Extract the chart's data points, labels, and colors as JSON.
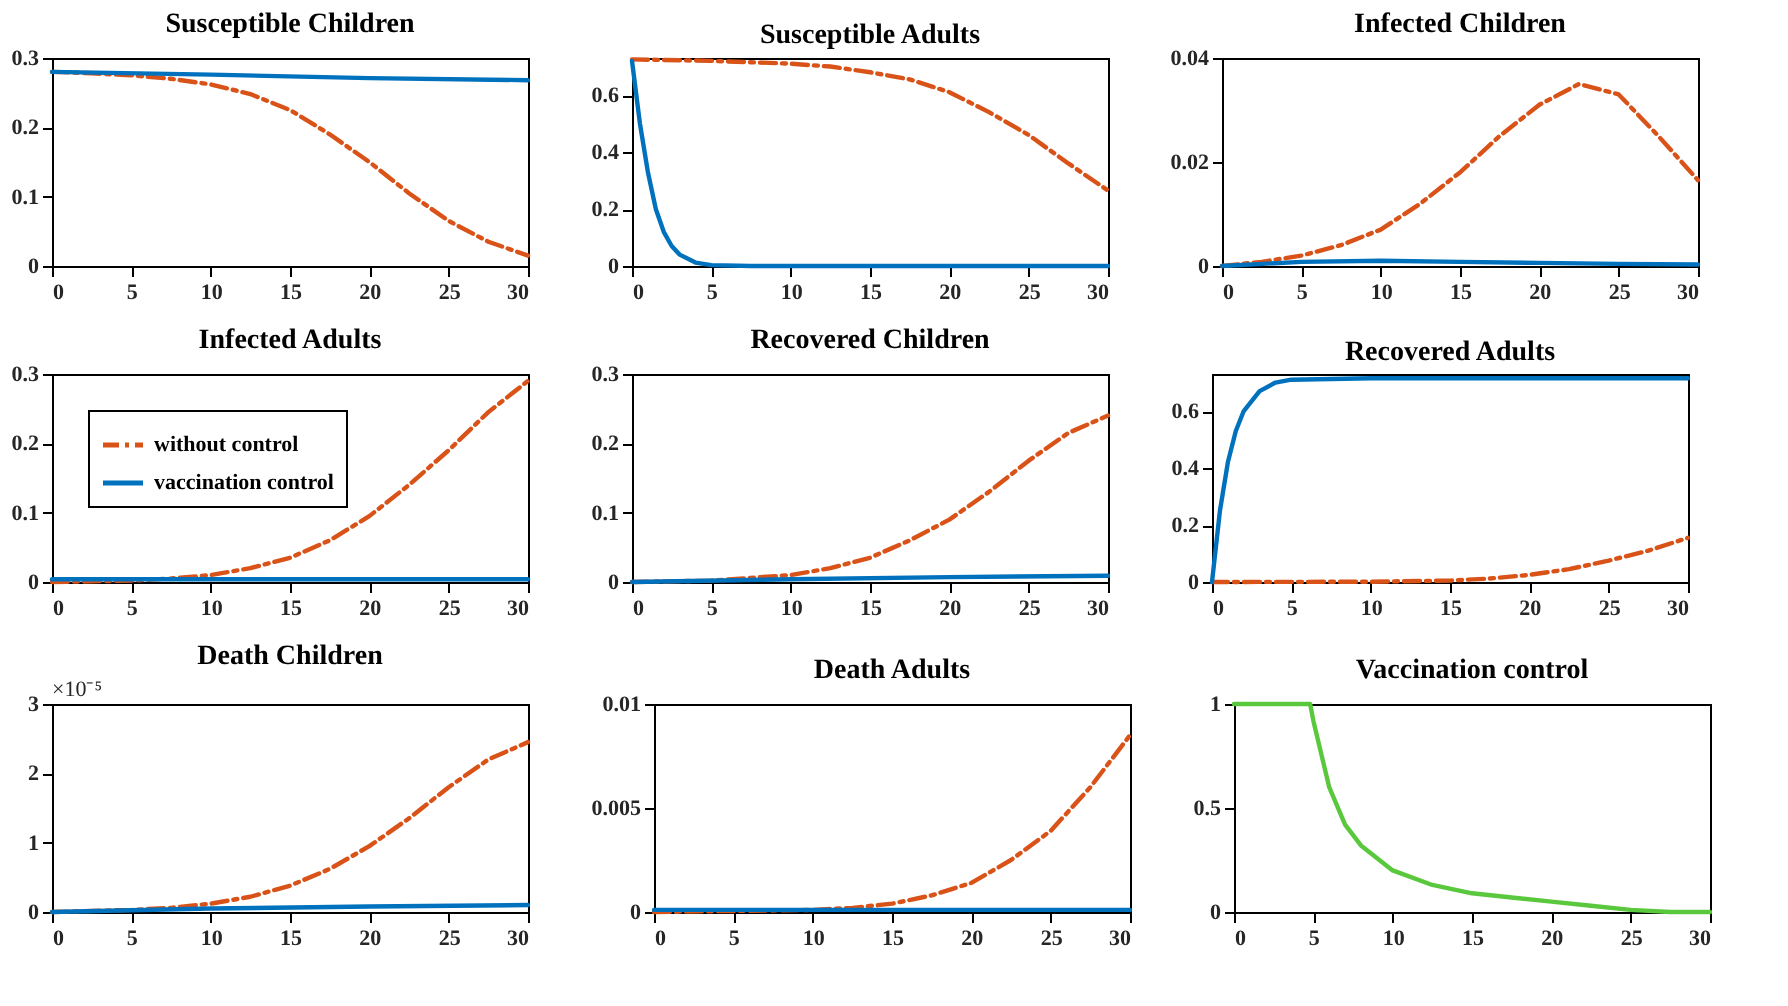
{
  "chart_data": [
    {
      "type": "line",
      "title": "Susceptible Children",
      "xlim": [
        0,
        30
      ],
      "xticks": [
        0,
        5,
        10,
        15,
        20,
        25,
        30
      ],
      "ylim": [
        0,
        0.3
      ],
      "yticks": [
        0,
        0.1,
        0.2,
        0.3
      ],
      "grid": false,
      "series": [
        {
          "color": "#d95319",
          "line_style": "dashed",
          "x": [
            0,
            2.5,
            5,
            7.5,
            10,
            12.5,
            15,
            17.5,
            20,
            22.5,
            25,
            27.5,
            30
          ],
          "values": [
            0.28,
            0.278,
            0.275,
            0.27,
            0.262,
            0.248,
            0.225,
            0.19,
            0.15,
            0.105,
            0.065,
            0.035,
            0.015
          ]
        },
        {
          "color": "#0072bd",
          "line_style": "solid",
          "x": [
            0,
            10,
            20,
            30
          ],
          "values": [
            0.28,
            0.276,
            0.271,
            0.268
          ]
        }
      ]
    },
    {
      "type": "line",
      "title": "Susceptible Adults",
      "xlim": [
        0,
        30
      ],
      "xticks": [
        0,
        5,
        10,
        15,
        20,
        25,
        30
      ],
      "ylim": [
        0,
        0.73
      ],
      "yticks": [
        0,
        0.2,
        0.4,
        0.6
      ],
      "grid": false,
      "series": [
        {
          "color": "#d95319",
          "line_style": "dashed",
          "x": [
            0,
            5,
            10,
            12.5,
            15,
            17.5,
            20,
            22.5,
            25,
            27.5,
            30
          ],
          "values": [
            0.725,
            0.72,
            0.71,
            0.7,
            0.68,
            0.655,
            0.61,
            0.54,
            0.46,
            0.36,
            0.265
          ]
        },
        {
          "color": "#0072bd",
          "line_style": "solid",
          "x": [
            0,
            0.5,
            1,
            1.5,
            2,
            2.5,
            3,
            4,
            5,
            7.5,
            30
          ],
          "values": [
            0.72,
            0.5,
            0.33,
            0.2,
            0.12,
            0.07,
            0.04,
            0.012,
            0.003,
            0,
            0
          ]
        }
      ]
    },
    {
      "type": "line",
      "title": "Infected Children",
      "xlim": [
        0,
        30
      ],
      "xticks": [
        0,
        5,
        10,
        15,
        20,
        25,
        30
      ],
      "ylim": [
        0,
        0.04
      ],
      "yticks": [
        0,
        0.02,
        0.04
      ],
      "grid": false,
      "series": [
        {
          "color": "#d95319",
          "line_style": "dashed",
          "x": [
            0,
            2.5,
            5,
            7.5,
            10,
            12.5,
            15,
            17.5,
            20,
            22.5,
            25,
            27.5,
            30
          ],
          "values": [
            0,
            0.0008,
            0.002,
            0.004,
            0.007,
            0.012,
            0.018,
            0.025,
            0.031,
            0.035,
            0.033,
            0.025,
            0.0165
          ]
        },
        {
          "color": "#0072bd",
          "line_style": "solid",
          "x": [
            0,
            5,
            10,
            15,
            20,
            25,
            30
          ],
          "values": [
            0,
            0.0008,
            0.001,
            0.0008,
            0.0006,
            0.0004,
            0.0003
          ]
        }
      ]
    },
    {
      "type": "line",
      "title": "Infected Adults",
      "xlim": [
        0,
        30
      ],
      "xticks": [
        0,
        5,
        10,
        15,
        20,
        25,
        30
      ],
      "ylim": [
        0,
        0.3
      ],
      "yticks": [
        0,
        0.1,
        0.2,
        0.3
      ],
      "grid": false,
      "legend": "top left",
      "series": [
        {
          "name": "without control",
          "color": "#d95319",
          "line_style": "dashed",
          "x": [
            0,
            5,
            7.5,
            10,
            12.5,
            15,
            17.5,
            20,
            22.5,
            25,
            27.5,
            30
          ],
          "values": [
            0,
            0.002,
            0.005,
            0.01,
            0.02,
            0.035,
            0.06,
            0.095,
            0.14,
            0.19,
            0.245,
            0.29
          ]
        },
        {
          "name": "vaccination control",
          "color": "#0072bd",
          "line_style": "solid",
          "x": [
            0,
            10,
            20,
            30
          ],
          "values": [
            0.004,
            0.004,
            0.004,
            0.004
          ]
        }
      ]
    },
    {
      "type": "line",
      "title": "Recovered Children",
      "xlim": [
        0,
        30
      ],
      "xticks": [
        0,
        5,
        10,
        15,
        20,
        25,
        30
      ],
      "ylim": [
        0,
        0.3
      ],
      "yticks": [
        0,
        0.1,
        0.2,
        0.3
      ],
      "grid": false,
      "series": [
        {
          "color": "#d95319",
          "line_style": "dashed",
          "x": [
            0,
            5,
            10,
            12.5,
            15,
            17.5,
            20,
            22.5,
            25,
            27.5,
            30
          ],
          "values": [
            0,
            0.002,
            0.01,
            0.02,
            0.035,
            0.06,
            0.09,
            0.13,
            0.175,
            0.215,
            0.24
          ]
        },
        {
          "color": "#0072bd",
          "line_style": "solid",
          "x": [
            0,
            10,
            20,
            30
          ],
          "values": [
            0,
            0.004,
            0.007,
            0.009
          ]
        }
      ]
    },
    {
      "type": "line",
      "title": "Recovered Adults",
      "xlim": [
        0,
        30
      ],
      "xticks": [
        0,
        5,
        10,
        15,
        20,
        25,
        30
      ],
      "ylim": [
        0,
        0.73
      ],
      "yticks": [
        0,
        0.2,
        0.4,
        0.6
      ],
      "grid": false,
      "series": [
        {
          "color": "#d95319",
          "line_style": "dashed",
          "x": [
            0,
            10,
            15,
            17.5,
            20,
            22.5,
            25,
            27.5,
            30
          ],
          "values": [
            0,
            0.001,
            0.005,
            0.012,
            0.025,
            0.045,
            0.075,
            0.11,
            0.155
          ]
        },
        {
          "color": "#0072bd",
          "line_style": "solid",
          "x": [
            0,
            0.5,
            1,
            1.5,
            2,
            3,
            4,
            5,
            10,
            30
          ],
          "values": [
            0,
            0.25,
            0.42,
            0.53,
            0.6,
            0.67,
            0.7,
            0.71,
            0.715,
            0.715
          ]
        }
      ]
    },
    {
      "type": "line",
      "title": "Death Children",
      "annotations": [
        "×10⁻⁵"
      ],
      "xlim": [
        0,
        30
      ],
      "xticks": [
        0,
        5,
        10,
        15,
        20,
        25,
        30
      ],
      "ylim": [
        0,
        3
      ],
      "yticks": [
        0,
        1,
        2,
        3
      ],
      "grid": false,
      "series": [
        {
          "color": "#d95319",
          "line_style": "dashed",
          "x": [
            0,
            5,
            7.5,
            10,
            12.5,
            15,
            17.5,
            20,
            22.5,
            25,
            27.5,
            30
          ],
          "values": [
            0,
            0.03,
            0.06,
            0.12,
            0.22,
            0.38,
            0.62,
            0.95,
            1.35,
            1.8,
            2.2,
            2.45
          ]
        },
        {
          "color": "#0072bd",
          "line_style": "solid",
          "x": [
            0,
            10,
            20,
            30
          ],
          "values": [
            0,
            0.05,
            0.08,
            0.1
          ]
        }
      ]
    },
    {
      "type": "line",
      "title": "Death Adults",
      "xlim": [
        0,
        30
      ],
      "xticks": [
        0,
        5,
        10,
        15,
        20,
        25,
        30
      ],
      "ylim": [
        0,
        0.01
      ],
      "yticks": [
        0,
        0.005,
        0.01
      ],
      "grid": false,
      "series": [
        {
          "color": "#d95319",
          "line_style": "dashed",
          "x": [
            0,
            10,
            12.5,
            15,
            17.5,
            20,
            22.5,
            25,
            27.5,
            30
          ],
          "values": [
            0,
            0.0001,
            0.0002,
            0.0004,
            0.0008,
            0.0014,
            0.0025,
            0.0039,
            0.006,
            0.0085
          ]
        },
        {
          "color": "#0072bd",
          "line_style": "solid",
          "x": [
            0,
            10,
            20,
            30
          ],
          "values": [
            0.0001,
            0.0001,
            0.0001,
            0.0001
          ]
        }
      ]
    },
    {
      "type": "line",
      "title": "Vaccination control",
      "xlim": [
        0,
        30
      ],
      "xticks": [
        0,
        5,
        10,
        15,
        20,
        25,
        30
      ],
      "ylim": [
        0,
        1
      ],
      "yticks": [
        0,
        0.5,
        1
      ],
      "grid": false,
      "series": [
        {
          "color": "#5ac83c",
          "line_style": "solid",
          "x": [
            0,
            4.8,
            5,
            6,
            7,
            8,
            10,
            12.5,
            15,
            17.5,
            20,
            22.5,
            25,
            27.5,
            30
          ],
          "values": [
            1,
            1,
            0.92,
            0.6,
            0.42,
            0.32,
            0.2,
            0.13,
            0.09,
            0.07,
            0.05,
            0.03,
            0.01,
            0,
            0
          ]
        }
      ]
    }
  ]
}
